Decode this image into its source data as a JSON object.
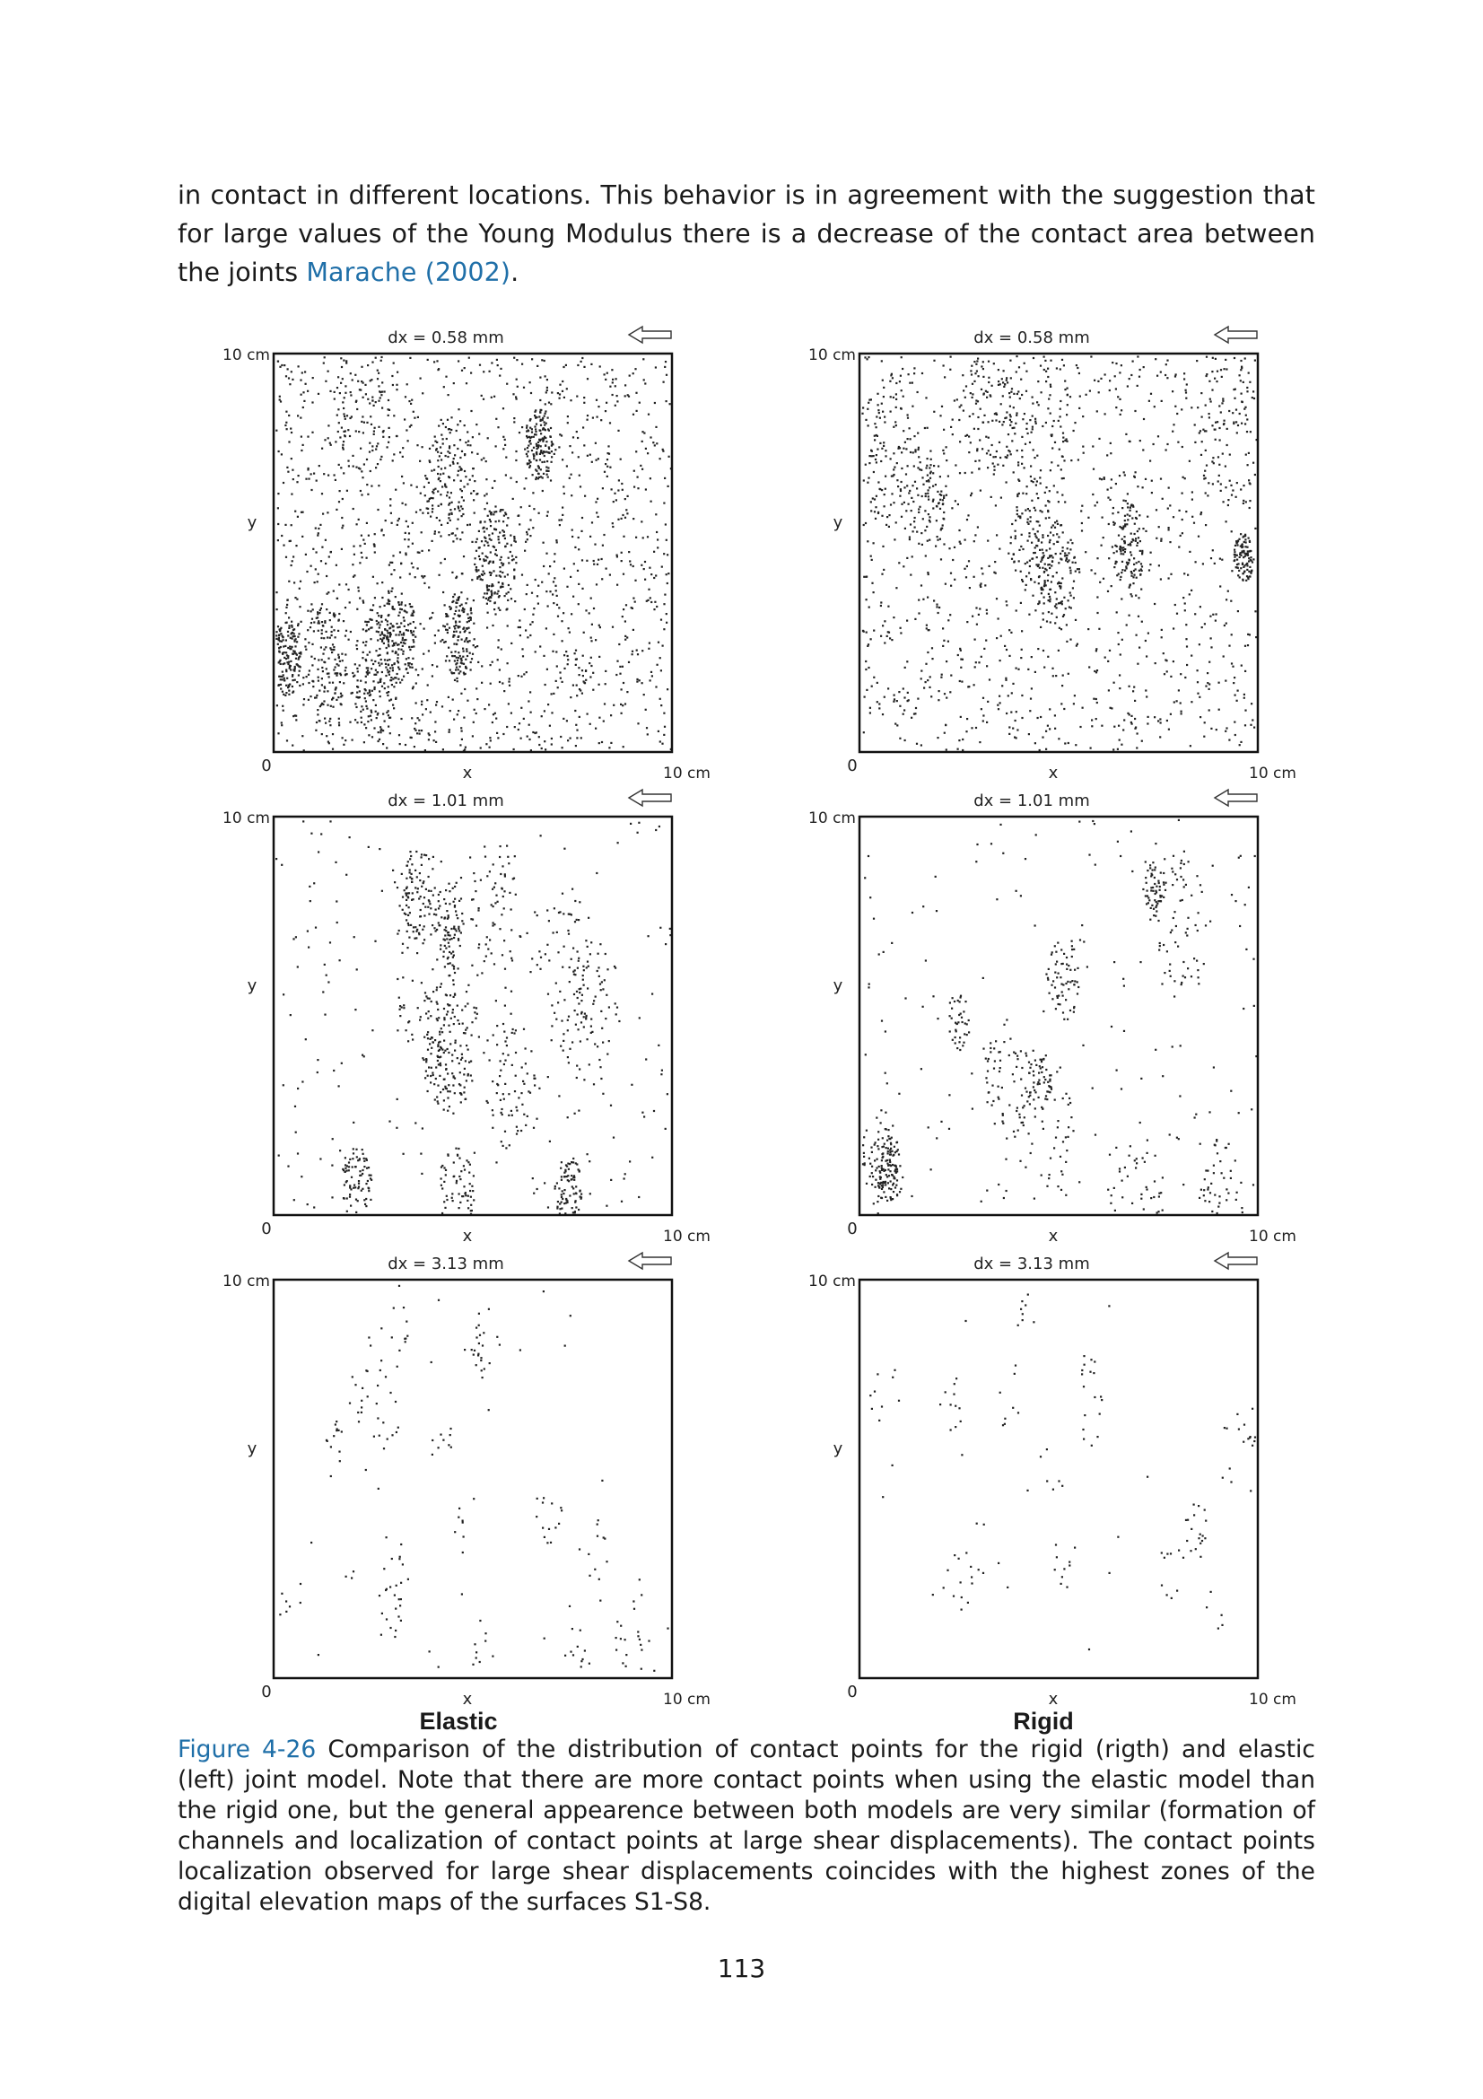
{
  "paragraph": {
    "text": "in contact in different locations. This behavior is in agreement with the suggestion that for large values of the Young Modulus there is a decrease of the contact area between the joints ",
    "citation": "Marache (2002)",
    "end": "."
  },
  "panel_labels": {
    "y_top": "10 cm",
    "origin": "0",
    "x_label": "x",
    "y_label": "y",
    "x_end": "10 cm"
  },
  "panels": [
    {
      "model": "Elastic",
      "title": "dx = 0.58 mm",
      "arrow_icon": "left-arrow-icon"
    },
    {
      "model": "Rigid",
      "title": "dx = 0.58 mm",
      "arrow_icon": "left-arrow-icon"
    },
    {
      "model": "Elastic",
      "title": "dx = 1.01 mm",
      "arrow_icon": "left-arrow-icon"
    },
    {
      "model": "Rigid",
      "title": "dx = 1.01 mm",
      "arrow_icon": "left-arrow-icon"
    },
    {
      "model": "Elastic",
      "title": "dx = 3.13 mm",
      "arrow_icon": "left-arrow-icon"
    },
    {
      "model": "Rigid",
      "title": "dx = 3.13 mm",
      "arrow_icon": "left-arrow-icon"
    }
  ],
  "model_labels": {
    "left": "Elastic",
    "right": "Rigid"
  },
  "caption": {
    "label": "Figure 4-26",
    "text": " Comparison of the distribution of contact points for the rigid (rigth) and elastic (left) joint model. Note that there are more contact points when using the elastic model than the rigid one, but the general appearence between both models are very similar (formation of channels and localization of contact points at large shear displacements). The contact points localization observed for large shear displacements coincides with the highest zones of the digital elevation maps of the surfaces S1-S8."
  },
  "page_number": "113"
}
